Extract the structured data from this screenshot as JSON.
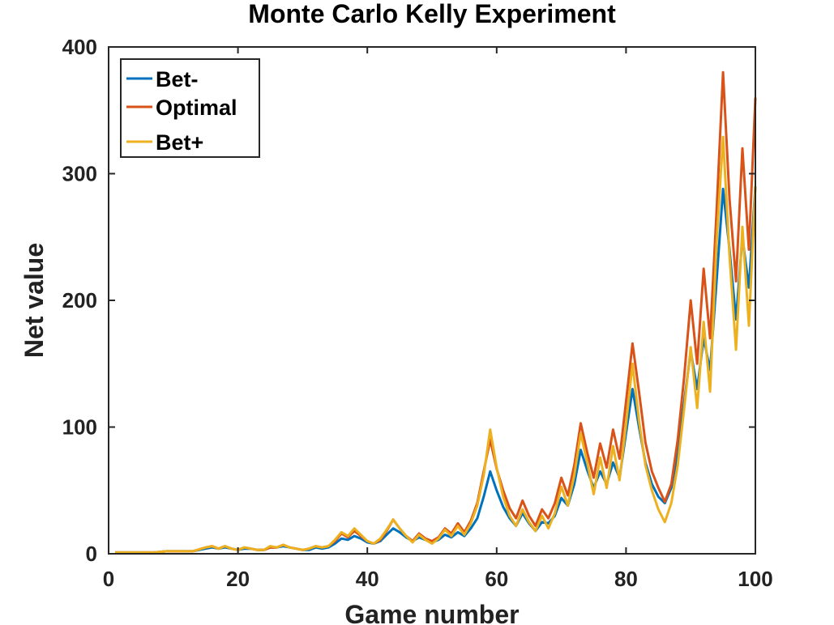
{
  "chart_data": {
    "type": "line",
    "title": "Monte Carlo Kelly Experiment",
    "xlabel": "Game number",
    "ylabel": "Net value",
    "xlim": [
      0,
      100
    ],
    "ylim": [
      0,
      400
    ],
    "xticks": [
      0,
      20,
      40,
      60,
      80,
      100
    ],
    "yticks": [
      0,
      100,
      200,
      300,
      400
    ],
    "grid": false,
    "legend_position": "top-left",
    "series": [
      {
        "name": "Bet-",
        "color": "#0072BD",
        "x": [
          1,
          3,
          5,
          7,
          9,
          11,
          13,
          15,
          16,
          17,
          18,
          19,
          20,
          21,
          22,
          23,
          24,
          25,
          26,
          27,
          28,
          29,
          30,
          31,
          32,
          33,
          34,
          35,
          36,
          37,
          38,
          39,
          40,
          41,
          42,
          43,
          44,
          45,
          46,
          47,
          48,
          49,
          50,
          51,
          52,
          53,
          54,
          55,
          56,
          57,
          58,
          59,
          60,
          61,
          62,
          63,
          64,
          65,
          66,
          67,
          68,
          69,
          70,
          71,
          72,
          73,
          74,
          75,
          76,
          77,
          78,
          79,
          80,
          81,
          82,
          83,
          84,
          85,
          86,
          87,
          88,
          89,
          90,
          91,
          92,
          93,
          94,
          95,
          96,
          97,
          98,
          99,
          100
        ],
        "y": [
          1,
          1,
          1,
          1,
          2,
          2,
          2,
          4,
          5,
          4,
          5,
          4,
          3,
          4,
          4,
          3,
          3,
          5,
          5,
          6,
          5,
          4,
          3,
          3,
          5,
          4,
          5,
          8,
          12,
          11,
          14,
          12,
          9,
          8,
          10,
          15,
          20,
          17,
          13,
          10,
          13,
          11,
          9,
          11,
          15,
          13,
          17,
          14,
          20,
          28,
          45,
          65,
          50,
          37,
          28,
          22,
          32,
          24,
          18,
          25,
          24,
          30,
          44,
          38,
          55,
          82,
          66,
          52,
          65,
          55,
          72,
          60,
          95,
          130,
          100,
          72,
          55,
          45,
          40,
          52,
          80,
          120,
          160,
          130,
          170,
          145,
          215,
          288,
          240,
          185,
          250,
          210,
          290
        ]
      },
      {
        "name": "Optimal",
        "color": "#D95319",
        "x": [
          1,
          3,
          5,
          7,
          9,
          11,
          13,
          15,
          16,
          17,
          18,
          19,
          20,
          21,
          22,
          23,
          24,
          25,
          26,
          27,
          28,
          29,
          30,
          31,
          32,
          33,
          34,
          35,
          36,
          37,
          38,
          39,
          40,
          41,
          42,
          43,
          44,
          45,
          46,
          47,
          48,
          49,
          50,
          51,
          52,
          53,
          54,
          55,
          56,
          57,
          58,
          59,
          60,
          61,
          62,
          63,
          64,
          65,
          66,
          67,
          68,
          69,
          70,
          71,
          72,
          73,
          74,
          75,
          76,
          77,
          78,
          79,
          80,
          81,
          82,
          83,
          84,
          85,
          86,
          87,
          88,
          89,
          90,
          91,
          92,
          93,
          94,
          95,
          96,
          97,
          98,
          99,
          100
        ],
        "y": [
          1,
          1,
          1,
          1,
          2,
          2,
          2,
          5,
          6,
          4,
          6,
          4,
          3,
          5,
          4,
          3,
          3,
          5,
          5,
          7,
          5,
          4,
          3,
          4,
          6,
          5,
          6,
          10,
          16,
          13,
          18,
          14,
          10,
          8,
          11,
          18,
          27,
          20,
          14,
          10,
          16,
          12,
          10,
          13,
          20,
          16,
          24,
          17,
          26,
          40,
          65,
          90,
          67,
          50,
          36,
          28,
          42,
          30,
          22,
          35,
          28,
          40,
          60,
          46,
          70,
          103,
          80,
          60,
          87,
          68,
          98,
          75,
          120,
          166,
          128,
          88,
          65,
          52,
          41,
          55,
          90,
          140,
          200,
          150,
          225,
          170,
          270,
          380,
          280,
          215,
          320,
          240,
          360
        ]
      },
      {
        "name": "Bet+",
        "color": "#EDB120",
        "x": [
          1,
          3,
          5,
          7,
          9,
          11,
          13,
          15,
          16,
          17,
          18,
          19,
          20,
          21,
          22,
          23,
          24,
          25,
          26,
          27,
          28,
          29,
          30,
          31,
          32,
          33,
          34,
          35,
          36,
          37,
          38,
          39,
          40,
          41,
          42,
          43,
          44,
          45,
          46,
          47,
          48,
          49,
          50,
          51,
          52,
          53,
          54,
          55,
          56,
          57,
          58,
          59,
          60,
          61,
          62,
          63,
          64,
          65,
          66,
          67,
          68,
          69,
          70,
          71,
          72,
          73,
          74,
          75,
          76,
          77,
          78,
          79,
          80,
          81,
          82,
          83,
          84,
          85,
          86,
          87,
          88,
          89,
          90,
          91,
          92,
          93,
          94,
          95,
          96,
          97,
          98,
          99,
          100
        ],
        "y": [
          1,
          1,
          1,
          1,
          2,
          2,
          2,
          5,
          6,
          4,
          6,
          4,
          3,
          5,
          4,
          3,
          3,
          6,
          5,
          7,
          5,
          4,
          3,
          4,
          6,
          5,
          6,
          11,
          17,
          14,
          20,
          15,
          10,
          8,
          12,
          19,
          27,
          20,
          14,
          9,
          15,
          11,
          8,
          12,
          19,
          14,
          22,
          15,
          24,
          38,
          62,
          98,
          68,
          45,
          30,
          22,
          35,
          25,
          18,
          30,
          20,
          32,
          53,
          38,
          62,
          95,
          72,
          47,
          76,
          52,
          85,
          58,
          102,
          150,
          105,
          70,
          50,
          35,
          25,
          40,
          70,
          115,
          163,
          115,
          183,
          128,
          245,
          329,
          235,
          161,
          258,
          180,
          290
        ]
      }
    ]
  }
}
